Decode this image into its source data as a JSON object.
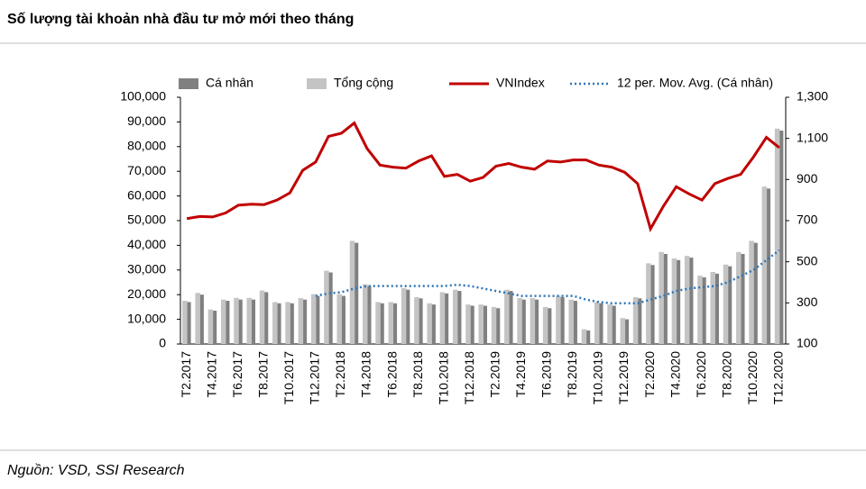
{
  "chart_data": {
    "type": "bar_line",
    "title": "Số lượng tài khoản nhà đầu tư mở mới theo tháng",
    "source": "Nguồn: VSD, SSI Research",
    "categories": [
      "T2.2017",
      null,
      "T4.2017",
      null,
      "T6.2017",
      null,
      "T8.2017",
      null,
      "T10.2017",
      null,
      "T12.2017",
      null,
      "T2.2018",
      null,
      "T4.2018",
      null,
      "T6.2018",
      null,
      "T8.2018",
      null,
      "T10.2018",
      null,
      "T12.2018",
      null,
      "T2.2019",
      null,
      "T4.2019",
      null,
      "T6.2019",
      null,
      "T8.2019",
      null,
      "T10.2019",
      null,
      "T12.2019",
      null,
      "T2.2020",
      null,
      "T4.2020",
      null,
      "T6.2020",
      null,
      "T8.2020",
      null,
      "T10.2020",
      null,
      "T12.2020"
    ],
    "series": [
      {
        "name": "Cá nhân",
        "type": "bar",
        "color": "#808080",
        "values": [
          17000,
          20000,
          13500,
          17500,
          18000,
          18000,
          21000,
          16500,
          16500,
          18000,
          19500,
          29000,
          19500,
          41000,
          23500,
          16500,
          16500,
          22000,
          18500,
          16000,
          20500,
          21500,
          15500,
          15500,
          14500,
          21500,
          18000,
          18000,
          14500,
          19000,
          17500,
          5500,
          16500,
          15500,
          10000,
          18500,
          32000,
          36500,
          34000,
          35000,
          27000,
          28500,
          31500,
          36500,
          41000,
          63000,
          86500
        ]
      },
      {
        "name": "Tổng cộng",
        "type": "bar",
        "color": "#c4c4c4",
        "values": [
          17500,
          20700,
          14000,
          18000,
          18700,
          18700,
          21700,
          17000,
          17000,
          18600,
          20200,
          29700,
          20200,
          41800,
          24200,
          17000,
          17000,
          22700,
          19000,
          16500,
          21000,
          22000,
          16000,
          16000,
          15000,
          22000,
          18600,
          18600,
          15000,
          19600,
          18000,
          6000,
          17000,
          16000,
          10500,
          19000,
          32700,
          37300,
          34700,
          35700,
          27700,
          29200,
          32200,
          37300,
          41800,
          63800,
          87300
        ]
      },
      {
        "name": "VNIndex",
        "type": "line",
        "axis": "y2",
        "color": "#c00000",
        "values": [
          710,
          720,
          718,
          737,
          775,
          780,
          778,
          800,
          835,
          945,
          985,
          1110,
          1125,
          1175,
          1050,
          970,
          960,
          955,
          990,
          1015,
          915,
          925,
          892,
          910,
          965,
          978,
          960,
          950,
          990,
          985,
          995,
          995,
          970,
          960,
          935,
          880,
          660,
          770,
          865,
          830,
          800,
          880,
          905,
          925,
          1010,
          1105,
          1055
        ]
      },
      {
        "name": "12 per. Mov. Avg. (Cá nhân)",
        "type": "dotted",
        "color": "#2e75b6",
        "values": [
          null,
          null,
          null,
          null,
          null,
          null,
          null,
          null,
          null,
          null,
          19500,
          20500,
          21000,
          22500,
          23500,
          23500,
          23500,
          23500,
          23500,
          23500,
          23500,
          24000,
          23500,
          22500,
          21500,
          20500,
          19500,
          19500,
          19500,
          19500,
          19500,
          18000,
          17000,
          16500,
          16500,
          16500,
          18000,
          19500,
          21500,
          22500,
          23000,
          23500,
          25000,
          27500,
          30000,
          34000,
          38000
        ]
      }
    ],
    "ylim": [
      0,
      100000
    ],
    "yticks": [
      0,
      {
        "value": 10000,
        "label": "10,000"
      },
      {
        "value": 20000,
        "label": "20,000"
      },
      {
        "value": 30000,
        "label": "30,000"
      },
      {
        "value": 40000,
        "label": "40,000"
      },
      {
        "value": 50000,
        "label": "50,000"
      },
      {
        "value": 60000,
        "label": "60,000"
      },
      {
        "value": 70000,
        "label": "70,000"
      },
      {
        "value": 80000,
        "label": "80,000"
      },
      {
        "value": 90000,
        "label": "90,000"
      },
      {
        "value": 100000,
        "label": "100,000"
      }
    ],
    "y2lim": [
      100,
      1300
    ],
    "y2ticks": [
      100,
      300,
      500,
      700,
      900,
      {
        "value": 1100,
        "label": "1,100"
      },
      {
        "value": 1300,
        "label": "1,300"
      }
    ],
    "legend": "top"
  }
}
